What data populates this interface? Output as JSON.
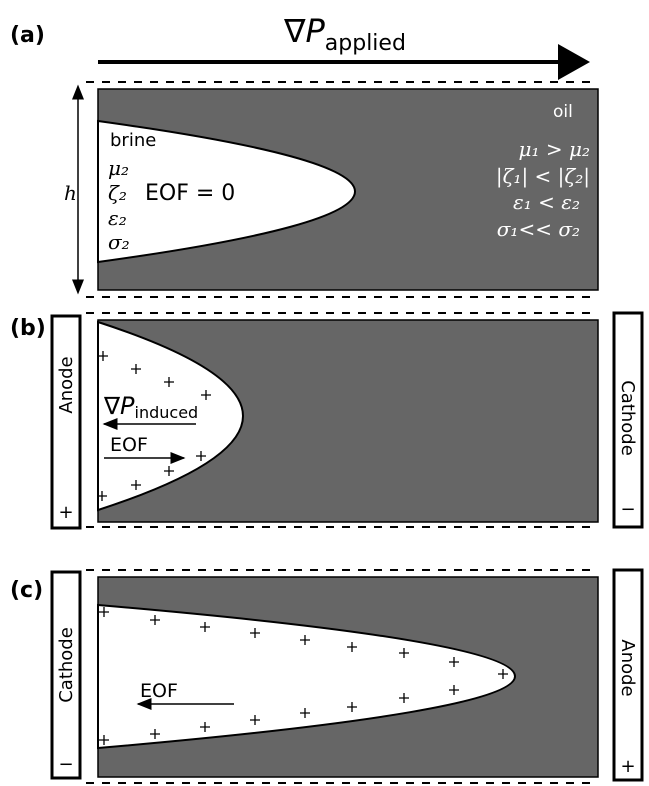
{
  "title": {
    "main": "∇P",
    "sub": "applied"
  },
  "panels": [
    {
      "label": "(a)",
      "oil": "oil",
      "brine": "brine",
      "brine_props": [
        "μ₂",
        "ζ₂",
        "ε₂",
        "σ₂"
      ],
      "eof": "EOF = 0",
      "height": "h",
      "relations": [
        "μ₁ > μ₂",
        "|ζ₁| < |ζ₂|",
        "ε₁ < ε₂",
        "σ₁<< σ₂"
      ]
    },
    {
      "label": "(b)",
      "left_electrode": "Anode",
      "left_sign": "+",
      "induced": {
        "main": "∇P",
        "sub": "induced"
      },
      "eof": "EOF",
      "right_electrode": "Cathode",
      "right_sign": "−"
    },
    {
      "label": "(c)",
      "left_electrode": "Cathode",
      "left_sign": "−",
      "eof": "EOF",
      "right_electrode": "Anode",
      "right_sign": "+"
    }
  ]
}
